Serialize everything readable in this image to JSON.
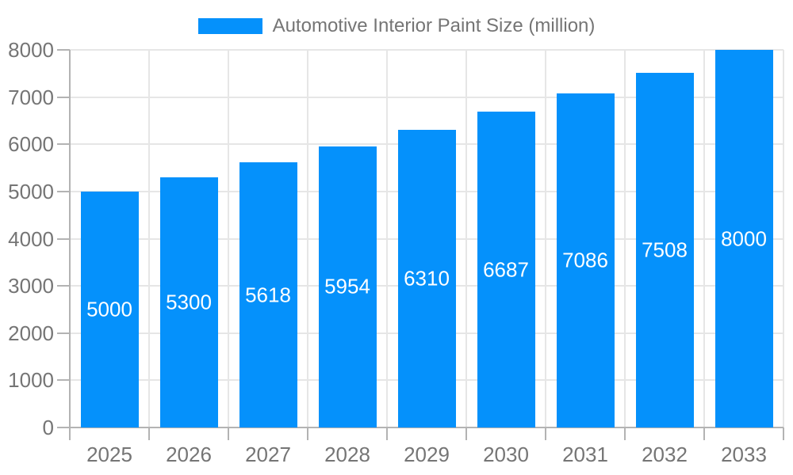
{
  "chart_data": {
    "type": "bar",
    "title": "Automotive Interior Paint Size (million)",
    "categories": [
      "2025",
      "2026",
      "2027",
      "2028",
      "2029",
      "2030",
      "2031",
      "2032",
      "2033"
    ],
    "values": [
      5000,
      5300,
      5618,
      5954,
      6310,
      6687,
      7086,
      7508,
      8000
    ],
    "xlabel": "",
    "ylabel": "",
    "ylim": [
      0,
      8000
    ],
    "ytick_interval": 1000,
    "ytick_labels": [
      "0",
      "1000",
      "2000",
      "3000",
      "4000",
      "5000",
      "6000",
      "7000",
      "8000"
    ],
    "grid": true,
    "legend_position": "top",
    "value_labels_position": "center-of-bar",
    "colors": {
      "bar": "#0591fb",
      "value_label": "#ffffff",
      "axis_text": "#757575",
      "axis_line": "#b3b3b3",
      "gridline": "#e6e6e6",
      "background": "#ffffff"
    }
  }
}
